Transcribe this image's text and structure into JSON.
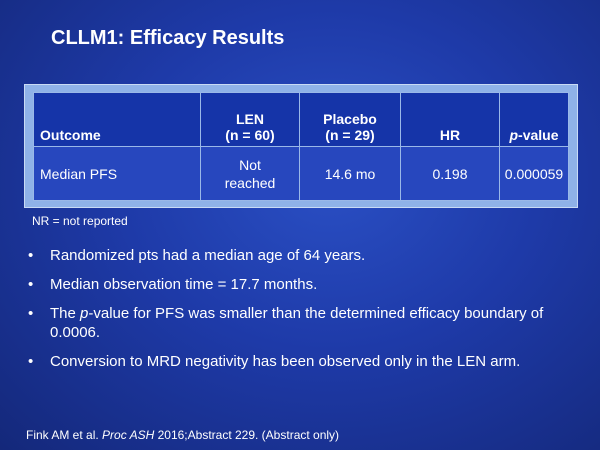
{
  "slide": {
    "title": "CLLM1: Efficacy Results"
  },
  "table": {
    "headers": {
      "outcome": "Outcome",
      "len_line1": "LEN",
      "len_line2": "(n = 60)",
      "placebo_line1": "Placebo",
      "placebo_line2": "(n = 29)",
      "hr": "HR",
      "pvalue_prefix": "p",
      "pvalue_suffix": "-value"
    },
    "row": {
      "outcome": "Median PFS",
      "len_line1": "Not",
      "len_line2": "reached",
      "placebo": "14.6 mo",
      "hr": "0.198",
      "pvalue": "0.000059"
    }
  },
  "footnote": "NR = not reported",
  "bullets": {
    "marker": "•",
    "b1": "Randomized pts had a median age of 64 years.",
    "b2": "Median observation time = 17.7 months.",
    "b3_prefix": "The ",
    "b3_em": "p",
    "b3_suffix": "-value for PFS was smaller than the determined efficacy boundary of 0.0006.",
    "b4": "Conversion to MRD negativity has been observed only in the LEN arm."
  },
  "citation": {
    "authors": "Fink AM et al. ",
    "journal": "Proc ASH",
    "rest": " 2016;Abstract 229. (Abstract only)"
  }
}
